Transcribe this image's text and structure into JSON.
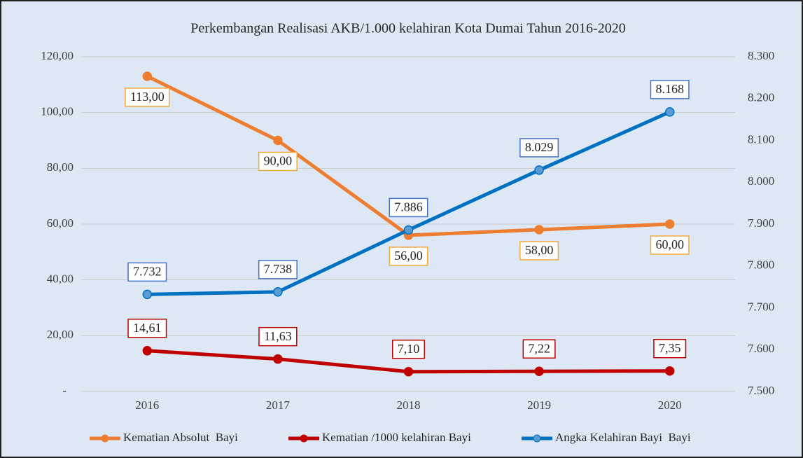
{
  "chart_data": {
    "type": "line",
    "title": "Perkembangan Realisasi AKB/1.000 kelahiran Kota Dumai Tahun 2016-2020",
    "categories": [
      "2016",
      "2017",
      "2018",
      "2019",
      "2020"
    ],
    "series": [
      {
        "name": "Kematian Absolut  Bayi",
        "color": "#ed7d31",
        "label_border": "#f2a93b",
        "label_side": "below",
        "values": [
          113,
          90,
          56,
          58,
          60
        ],
        "value_labels": [
          "113,00",
          "90,00",
          "56,00",
          "58,00",
          "60,00"
        ]
      },
      {
        "name": "Kematian /1000 kelahiran Bayi",
        "color": "#c00000",
        "label_border": "#c00000",
        "label_side": "above",
        "values": [
          14.61,
          11.63,
          7.1,
          7.22,
          7.35
        ],
        "value_labels": [
          "14,61",
          "11,63",
          "7,10",
          "7,22",
          "7,35"
        ]
      },
      {
        "name": "Angka Kelahiran Bayi  Bayi",
        "color": "#0070c0",
        "label_border": "#4472c4",
        "label_side": "above",
        "axis": "y2",
        "values": [
          7732,
          7738,
          7886,
          8029,
          8168
        ],
        "value_labels": [
          "7.732",
          "7.738",
          "7.886",
          "8.029",
          "8.168"
        ]
      }
    ],
    "ylim": [
      0,
      120
    ],
    "yticks": [
      {
        "value": 0,
        "label": "-"
      },
      {
        "value": 20,
        "label": "20,00"
      },
      {
        "value": 40,
        "label": "40,00"
      },
      {
        "value": 60,
        "label": "60,00"
      },
      {
        "value": 80,
        "label": "80,00"
      },
      {
        "value": 100,
        "label": "100,00"
      },
      {
        "value": 120,
        "label": "120,00"
      }
    ],
    "y2lim": [
      7500,
      8300
    ],
    "y2ticks": [
      {
        "value": 7500,
        "label": "7.500"
      },
      {
        "value": 7600,
        "label": "7.600"
      },
      {
        "value": 7700,
        "label": "7.700"
      },
      {
        "value": 7800,
        "label": "7.800"
      },
      {
        "value": 7900,
        "label": "7.900"
      },
      {
        "value": 8000,
        "label": "8.000"
      },
      {
        "value": 8100,
        "label": "8.100"
      },
      {
        "value": 8200,
        "label": "8.200"
      },
      {
        "value": 8300,
        "label": "8.300"
      }
    ],
    "grid": true,
    "legend": "bottom"
  }
}
